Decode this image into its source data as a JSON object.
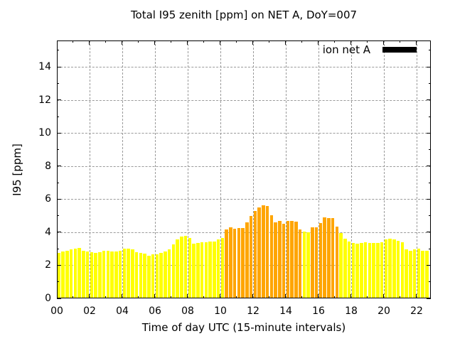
{
  "chart_data": {
    "type": "bar",
    "title": "Total I95 zenith [ppm] on NET A, DoY=007",
    "xlabel": "Time of day UTC (15-minute intervals)",
    "ylabel": "I95 [ppm]",
    "legend": [
      {
        "label": "ion net A",
        "swatch_color": "#000000"
      }
    ],
    "legend_position": "top-right",
    "grid": true,
    "ylim": [
      0,
      15.6
    ],
    "y_ticks": [
      0,
      2,
      4,
      6,
      8,
      10,
      12,
      14
    ],
    "y_minor_ticks": [
      1,
      3,
      5,
      7,
      9,
      11,
      13,
      15
    ],
    "xlim_hours": [
      0,
      22.87
    ],
    "x_major_tick_hours": [
      0,
      2,
      4,
      6,
      8,
      10,
      12,
      14,
      16,
      18,
      20,
      22
    ],
    "x_tick_labels": [
      "00",
      "02",
      "04",
      "06",
      "08",
      "10",
      "12",
      "14",
      "16",
      "18",
      "20",
      "22"
    ],
    "x_minor_tick_hours": [
      1,
      3,
      5,
      7,
      9,
      11,
      13,
      15,
      17,
      19,
      21
    ],
    "interval_minutes": 15,
    "colors": {
      "yellow": "#ffff00",
      "orange": "#ffa500",
      "grid": "#9a9a9a",
      "axis": "#000000"
    },
    "bars": [
      {
        "t": "00:00",
        "v": 2.75,
        "c": "yellow"
      },
      {
        "t": "00:15",
        "v": 2.85,
        "c": "yellow"
      },
      {
        "t": "00:30",
        "v": 2.9,
        "c": "yellow"
      },
      {
        "t": "00:45",
        "v": 2.95,
        "c": "yellow"
      },
      {
        "t": "01:00",
        "v": 3.0,
        "c": "yellow"
      },
      {
        "t": "01:15",
        "v": 3.05,
        "c": "yellow"
      },
      {
        "t": "01:30",
        "v": 2.9,
        "c": "yellow"
      },
      {
        "t": "01:45",
        "v": 2.85,
        "c": "yellow"
      },
      {
        "t": "02:00",
        "v": 2.8,
        "c": "yellow"
      },
      {
        "t": "02:15",
        "v": 2.75,
        "c": "yellow"
      },
      {
        "t": "02:30",
        "v": 2.8,
        "c": "yellow"
      },
      {
        "t": "02:45",
        "v": 2.9,
        "c": "yellow"
      },
      {
        "t": "03:00",
        "v": 2.9,
        "c": "yellow"
      },
      {
        "t": "03:15",
        "v": 2.85,
        "c": "yellow"
      },
      {
        "t": "03:30",
        "v": 2.85,
        "c": "yellow"
      },
      {
        "t": "03:45",
        "v": 2.9,
        "c": "yellow"
      },
      {
        "t": "04:00",
        "v": 3.0,
        "c": "yellow"
      },
      {
        "t": "04:15",
        "v": 3.0,
        "c": "yellow"
      },
      {
        "t": "04:30",
        "v": 2.95,
        "c": "yellow"
      },
      {
        "t": "04:45",
        "v": 2.8,
        "c": "yellow"
      },
      {
        "t": "05:00",
        "v": 2.75,
        "c": "yellow"
      },
      {
        "t": "05:15",
        "v": 2.7,
        "c": "yellow"
      },
      {
        "t": "05:30",
        "v": 2.6,
        "c": "yellow"
      },
      {
        "t": "05:45",
        "v": 2.65,
        "c": "yellow"
      },
      {
        "t": "06:00",
        "v": 2.65,
        "c": "yellow"
      },
      {
        "t": "06:15",
        "v": 2.75,
        "c": "yellow"
      },
      {
        "t": "06:30",
        "v": 2.85,
        "c": "yellow"
      },
      {
        "t": "06:45",
        "v": 2.95,
        "c": "yellow"
      },
      {
        "t": "07:00",
        "v": 3.25,
        "c": "yellow"
      },
      {
        "t": "07:15",
        "v": 3.55,
        "c": "yellow"
      },
      {
        "t": "07:30",
        "v": 3.75,
        "c": "yellow"
      },
      {
        "t": "07:45",
        "v": 3.8,
        "c": "yellow"
      },
      {
        "t": "08:00",
        "v": 3.65,
        "c": "yellow"
      },
      {
        "t": "08:15",
        "v": 3.3,
        "c": "yellow"
      },
      {
        "t": "08:30",
        "v": 3.35,
        "c": "yellow"
      },
      {
        "t": "08:45",
        "v": 3.4,
        "c": "yellow"
      },
      {
        "t": "09:00",
        "v": 3.4,
        "c": "yellow"
      },
      {
        "t": "09:15",
        "v": 3.45,
        "c": "yellow"
      },
      {
        "t": "09:30",
        "v": 3.45,
        "c": "yellow"
      },
      {
        "t": "09:45",
        "v": 3.55,
        "c": "yellow"
      },
      {
        "t": "10:00",
        "v": 3.65,
        "c": "yellow"
      },
      {
        "t": "10:15",
        "v": 4.15,
        "c": "orange"
      },
      {
        "t": "10:30",
        "v": 4.3,
        "c": "orange"
      },
      {
        "t": "10:45",
        "v": 4.2,
        "c": "orange"
      },
      {
        "t": "11:00",
        "v": 4.25,
        "c": "orange"
      },
      {
        "t": "11:15",
        "v": 4.25,
        "c": "orange"
      },
      {
        "t": "11:30",
        "v": 4.6,
        "c": "orange"
      },
      {
        "t": "11:45",
        "v": 5.0,
        "c": "orange"
      },
      {
        "t": "12:00",
        "v": 5.3,
        "c": "orange"
      },
      {
        "t": "12:15",
        "v": 5.5,
        "c": "orange"
      },
      {
        "t": "12:30",
        "v": 5.65,
        "c": "orange"
      },
      {
        "t": "12:45",
        "v": 5.6,
        "c": "orange"
      },
      {
        "t": "13:00",
        "v": 5.05,
        "c": "orange"
      },
      {
        "t": "13:15",
        "v": 4.6,
        "c": "orange"
      },
      {
        "t": "13:30",
        "v": 4.7,
        "c": "orange"
      },
      {
        "t": "13:45",
        "v": 4.5,
        "c": "orange"
      },
      {
        "t": "14:00",
        "v": 4.7,
        "c": "orange"
      },
      {
        "t": "14:15",
        "v": 4.7,
        "c": "orange"
      },
      {
        "t": "14:30",
        "v": 4.65,
        "c": "orange"
      },
      {
        "t": "14:45",
        "v": 4.15,
        "c": "orange"
      },
      {
        "t": "15:00",
        "v": 4.05,
        "c": "yellow"
      },
      {
        "t": "15:15",
        "v": 4.0,
        "c": "yellow"
      },
      {
        "t": "15:30",
        "v": 4.3,
        "c": "orange"
      },
      {
        "t": "15:45",
        "v": 4.3,
        "c": "orange"
      },
      {
        "t": "16:00",
        "v": 4.55,
        "c": "orange"
      },
      {
        "t": "16:15",
        "v": 4.9,
        "c": "orange"
      },
      {
        "t": "16:30",
        "v": 4.85,
        "c": "orange"
      },
      {
        "t": "16:45",
        "v": 4.85,
        "c": "orange"
      },
      {
        "t": "17:00",
        "v": 4.35,
        "c": "orange"
      },
      {
        "t": "17:15",
        "v": 3.95,
        "c": "yellow"
      },
      {
        "t": "17:30",
        "v": 3.6,
        "c": "yellow"
      },
      {
        "t": "17:45",
        "v": 3.45,
        "c": "yellow"
      },
      {
        "t": "18:00",
        "v": 3.35,
        "c": "yellow"
      },
      {
        "t": "18:15",
        "v": 3.3,
        "c": "yellow"
      },
      {
        "t": "18:30",
        "v": 3.35,
        "c": "yellow"
      },
      {
        "t": "18:45",
        "v": 3.4,
        "c": "yellow"
      },
      {
        "t": "19:00",
        "v": 3.35,
        "c": "yellow"
      },
      {
        "t": "19:15",
        "v": 3.35,
        "c": "yellow"
      },
      {
        "t": "19:30",
        "v": 3.35,
        "c": "yellow"
      },
      {
        "t": "19:45",
        "v": 3.4,
        "c": "yellow"
      },
      {
        "t": "20:00",
        "v": 3.55,
        "c": "yellow"
      },
      {
        "t": "20:15",
        "v": 3.6,
        "c": "yellow"
      },
      {
        "t": "20:30",
        "v": 3.55,
        "c": "yellow"
      },
      {
        "t": "20:45",
        "v": 3.5,
        "c": "yellow"
      },
      {
        "t": "21:00",
        "v": 3.4,
        "c": "yellow"
      },
      {
        "t": "21:15",
        "v": 2.95,
        "c": "yellow"
      },
      {
        "t": "21:30",
        "v": 2.9,
        "c": "yellow"
      },
      {
        "t": "21:45",
        "v": 2.95,
        "c": "yellow"
      },
      {
        "t": "22:00",
        "v": 3.0,
        "c": "yellow"
      },
      {
        "t": "22:15",
        "v": 2.9,
        "c": "yellow"
      },
      {
        "t": "22:30",
        "v": 2.9,
        "c": "yellow"
      }
    ]
  }
}
